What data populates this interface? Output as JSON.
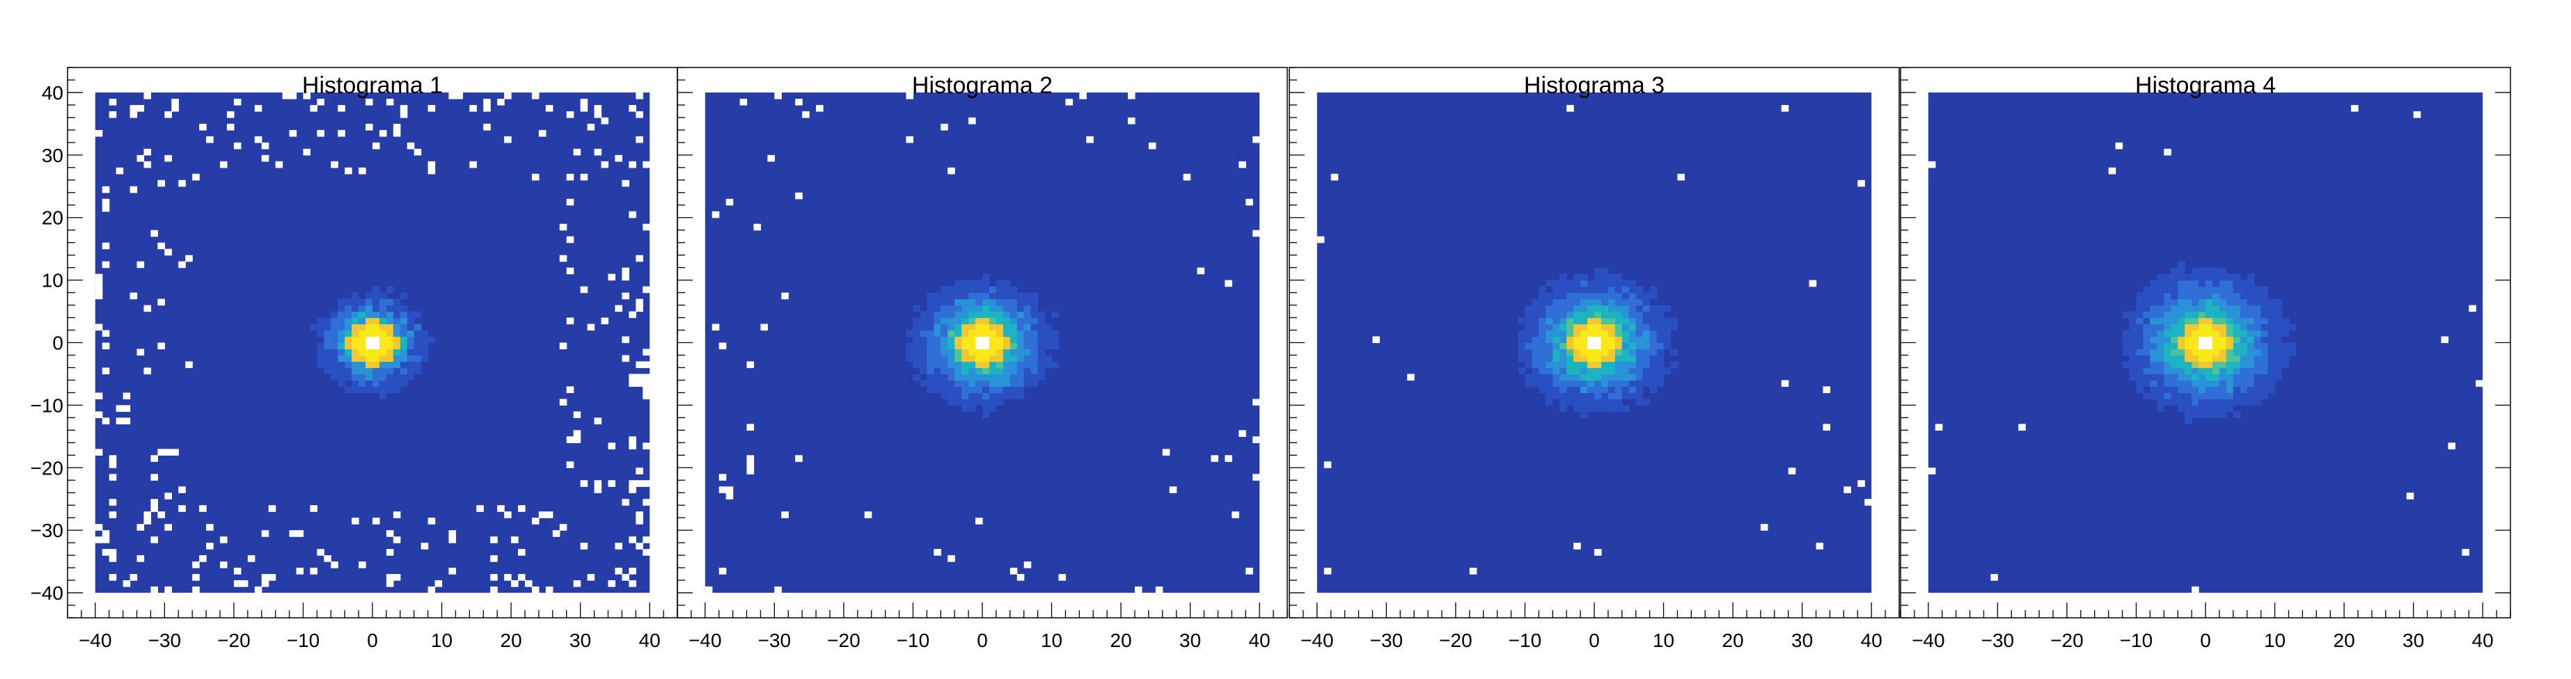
{
  "chart_data": [
    {
      "type": "heatmap",
      "title": "Histograma 1",
      "xlim": [
        -44,
        44
      ],
      "ylim": [
        -44,
        44
      ],
      "fill_range": [
        -40,
        40
      ],
      "x_ticks": [
        -40,
        -30,
        -20,
        -10,
        0,
        10,
        20,
        30,
        40
      ],
      "y_ticks": [
        -40,
        -30,
        -20,
        -10,
        0,
        10,
        20,
        30,
        40
      ],
      "y_labels_visible": true,
      "peak": {
        "x": 0,
        "y": 0,
        "center_empty": true
      },
      "halo_radius": 10,
      "empty_edge_bins": "many"
    },
    {
      "type": "heatmap",
      "title": "Histograma 2",
      "xlim": [
        -44,
        44
      ],
      "ylim": [
        -44,
        44
      ],
      "fill_range": [
        -40,
        40
      ],
      "x_ticks": [
        -40,
        -30,
        -20,
        -10,
        0,
        10,
        20,
        30,
        40
      ],
      "y_ticks": [
        -40,
        -30,
        -20,
        -10,
        0,
        10,
        20,
        30,
        40
      ],
      "y_labels_visible": false,
      "peak": {
        "x": 0,
        "y": 0,
        "center_empty": true
      },
      "halo_radius": 13,
      "empty_edge_bins": "few"
    },
    {
      "type": "heatmap",
      "title": "Histograma 3",
      "xlim": [
        -44,
        44
      ],
      "ylim": [
        -44,
        44
      ],
      "fill_range": [
        -40,
        40
      ],
      "x_ticks": [
        -40,
        -30,
        -20,
        -10,
        0,
        10,
        20,
        30,
        40
      ],
      "y_ticks": [
        -40,
        -30,
        -20,
        -10,
        0,
        10,
        20,
        30,
        40
      ],
      "y_labels_visible": false,
      "peak": {
        "x": 0,
        "y": 0,
        "center_empty": true
      },
      "halo_radius": 14,
      "empty_edge_bins": "very few"
    },
    {
      "type": "heatmap",
      "title": "Histograma 4",
      "xlim": [
        -44,
        44
      ],
      "ylim": [
        -44,
        44
      ],
      "fill_range": [
        -40,
        40
      ],
      "x_ticks": [
        -40,
        -30,
        -20,
        -10,
        0,
        10,
        20,
        30,
        40
      ],
      "y_ticks": [
        -40,
        -30,
        -20,
        -10,
        0,
        10,
        20,
        30,
        40
      ],
      "y_labels_visible": false,
      "peak": {
        "x": 0,
        "y": 0,
        "center_empty": true
      },
      "halo_radius": 15,
      "empty_edge_bins": "very few"
    }
  ],
  "colors": {
    "background_fill": "#263da8",
    "colormap": [
      "#263da8",
      "#2a4fc0",
      "#2f6fd6",
      "#2a93d8",
      "#1db4c2",
      "#4bc49a",
      "#a7c85a",
      "#f2c832",
      "#fbe819"
    ],
    "axis": "#000000"
  }
}
